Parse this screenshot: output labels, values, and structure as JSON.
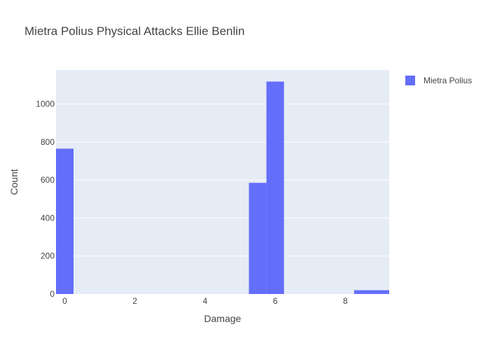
{
  "chart_data": {
    "type": "bar",
    "title": "Mietra Polius Physical Attacks Ellie Benlin",
    "xlabel": "Damage",
    "ylabel": "Count",
    "x_ticks": [
      0,
      2,
      4,
      6,
      8
    ],
    "y_ticks": [
      0,
      200,
      400,
      600,
      800,
      1000
    ],
    "xlim": [
      -0.25,
      9.25
    ],
    "ylim": [
      0,
      1179
    ],
    "grid": true,
    "legend_position": "top-right",
    "series": [
      {
        "name": "Mietra Polius",
        "color": "#636efa",
        "bins": [
          {
            "x0": -0.25,
            "x1": 0.25,
            "value": 765
          },
          {
            "x0": 5.25,
            "x1": 5.75,
            "value": 585
          },
          {
            "x0": 5.75,
            "x1": 6.25,
            "value": 1118
          },
          {
            "x0": 8.25,
            "x1": 9.25,
            "value": 20
          }
        ]
      }
    ]
  },
  "colors": {
    "plot_background": "#e5ecf6",
    "grid": "#ffffff",
    "bar": "#636efa"
  }
}
